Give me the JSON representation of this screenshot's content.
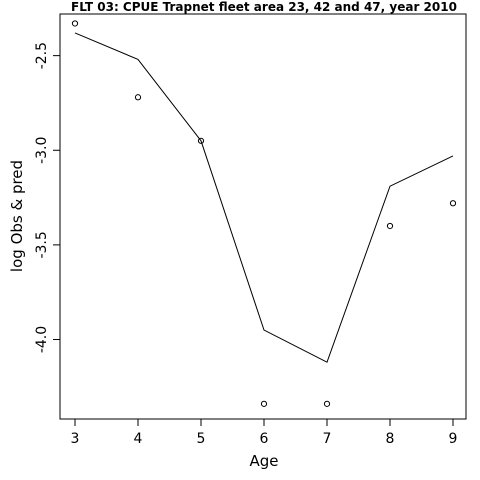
{
  "chart_data": {
    "type": "line",
    "title": "FLT 03: CPUE Trapnet fleet area 23, 42 and 47, year 2010",
    "xlabel": "Age",
    "ylabel": "log Obs & pred",
    "xlim": [
      3,
      9
    ],
    "ylim": [
      -4.42,
      -2.28
    ],
    "x_ticks": [
      3,
      4,
      5,
      6,
      7,
      8,
      9
    ],
    "y_ticks": [
      -2.5,
      -3.0,
      -3.5,
      -4.0
    ],
    "y_tick_labels": [
      "-2.5",
      "-3.0",
      "-3.5",
      "-4.0"
    ],
    "x": [
      3,
      4,
      5,
      6,
      7,
      8,
      9
    ],
    "series": [
      {
        "kind": "line",
        "values": [
          -2.38,
          -2.52,
          -2.95,
          -3.95,
          -4.12,
          -3.19,
          -3.03
        ]
      },
      {
        "kind": "points",
        "values": [
          -2.33,
          -2.72,
          -2.95,
          -4.34,
          -4.34,
          -3.4,
          -3.28
        ]
      }
    ],
    "grid": false,
    "legend": "none"
  }
}
